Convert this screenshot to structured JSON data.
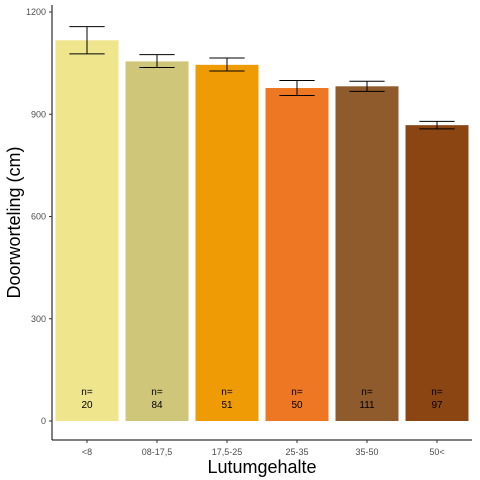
{
  "chart_data": {
    "type": "bar",
    "xlabel": "Lutumgehalte",
    "ylabel": "Doorworteling (cm)",
    "ylim": [
      0,
      1200
    ],
    "yticks": [
      0,
      300,
      600,
      900,
      1200
    ],
    "grid": false,
    "legend": "none",
    "categories": [
      "<8",
      "08-17,5",
      "17,5-25",
      "25-35",
      "35-50",
      "50<"
    ],
    "values": [
      1117,
      1055,
      1045,
      977,
      982,
      868
    ],
    "error_low": [
      1077,
      1037,
      1027,
      955,
      967,
      857
    ],
    "error_high": [
      1157,
      1075,
      1065,
      999,
      997,
      879
    ],
    "n_prefix": "n=",
    "n_values": [
      "20",
      "84",
      "51",
      "50",
      "111",
      "97"
    ],
    "colors": [
      "#eee58d",
      "#cfc67a",
      "#ef9b05",
      "#ed7722",
      "#8f5a2c",
      "#8b4513"
    ]
  }
}
